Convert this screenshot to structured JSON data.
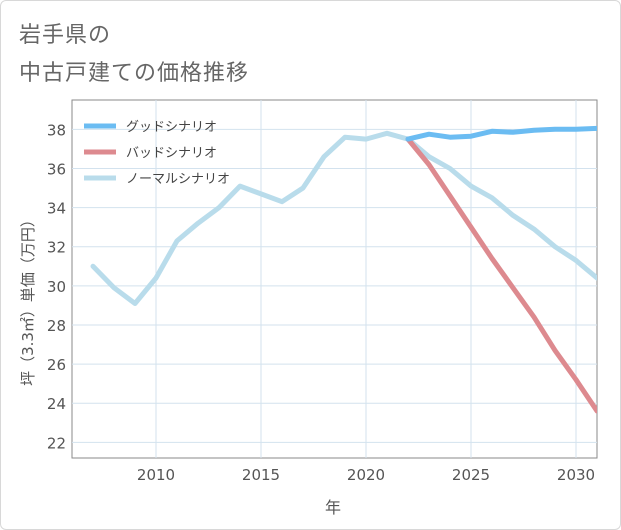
{
  "title_lines": [
    "岩手県の",
    "中古戸建ての価格推移"
  ],
  "chart_data": {
    "type": "line",
    "xlabel": "年",
    "ylabel": "坪（3.3㎡）単価（万円）",
    "xlim": [
      2006,
      2031
    ],
    "ylim": [
      21.2,
      39.5
    ],
    "xticks": [
      2010,
      2015,
      2020,
      2025,
      2030
    ],
    "yticks": [
      22,
      24,
      26,
      28,
      30,
      32,
      34,
      36,
      38
    ],
    "grid": true,
    "legend_position": "top-left",
    "series": [
      {
        "name": "グッドシナリオ",
        "color": "#6bbcf2",
        "x": [
          2022,
          2023,
          2024,
          2025,
          2026,
          2027,
          2028,
          2029,
          2030,
          2031
        ],
        "y": [
          37.5,
          37.75,
          37.6,
          37.65,
          37.9,
          37.85,
          37.95,
          38.0,
          38.0,
          38.05
        ]
      },
      {
        "name": "バッドシナリオ",
        "color": "#dd8a8f",
        "x": [
          2022,
          2023,
          2024,
          2025,
          2026,
          2027,
          2028,
          2029,
          2030,
          2031
        ],
        "y": [
          37.5,
          36.2,
          34.6,
          33.0,
          31.4,
          29.9,
          28.4,
          26.7,
          25.2,
          23.6
        ]
      },
      {
        "name": "ノーマルシナリオ",
        "color": "#b9dceb",
        "x": [
          2007,
          2008,
          2009,
          2010,
          2011,
          2012,
          2013,
          2014,
          2015,
          2016,
          2017,
          2018,
          2019,
          2020,
          2021,
          2022,
          2023,
          2024,
          2025,
          2026,
          2027,
          2028,
          2029,
          2030,
          2031
        ],
        "y": [
          31.0,
          29.9,
          29.1,
          30.4,
          32.3,
          33.2,
          34.0,
          35.1,
          34.7,
          34.3,
          35.0,
          36.6,
          37.6,
          37.5,
          37.8,
          37.5,
          36.6,
          36.0,
          35.1,
          34.5,
          33.6,
          32.9,
          32.0,
          31.3,
          30.4
        ]
      }
    ]
  }
}
